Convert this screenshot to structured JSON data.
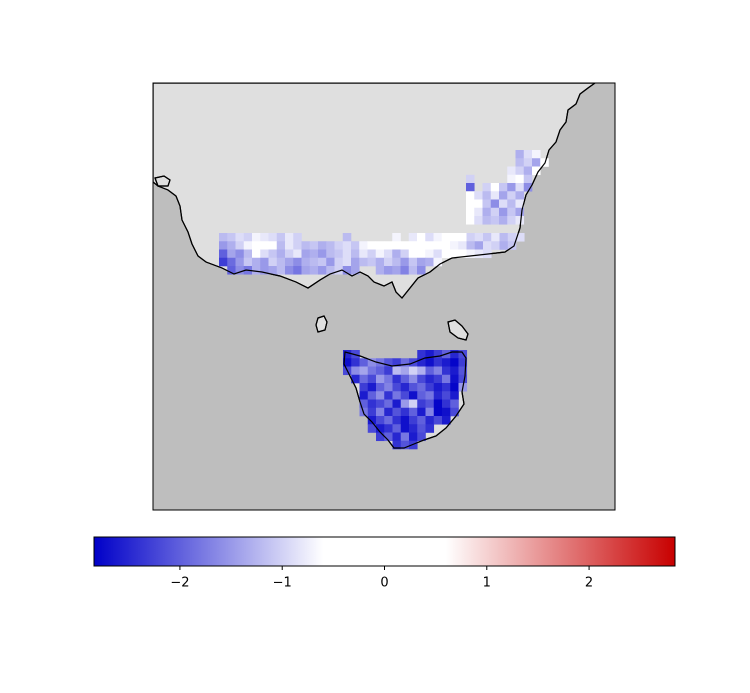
{
  "map_data": {
    "type": "gridded-map",
    "clim": [
      -2.84,
      2.84
    ],
    "cmap_stops": [
      {
        "value": -2.84,
        "color": "#0000c8"
      },
      {
        "value": -0.6,
        "color": "#ffffff"
      },
      {
        "value": 0.6,
        "color": "#ffffff"
      },
      {
        "value": 2.84,
        "color": "#c80000"
      }
    ],
    "ticks": [
      {
        "value": -2,
        "label": "−2"
      },
      {
        "value": -1,
        "label": "−1"
      },
      0,
      1,
      2
    ],
    "land_color": "#dfdfdf",
    "sea_color": "#bebebe",
    "regions": [
      {
        "values": [
          [
            -1.2,
            -1.1,
            -0.9,
            -1.0,
            -0.7,
            -0.8,
            -0.9,
            -1.1,
            -0.8,
            -1.0,
            null,
            null,
            null,
            null,
            null,
            -1.2,
            null,
            null,
            null,
            null,
            null,
            -0.7,
            null,
            -0.8,
            -0.6,
            -0.9,
            -0.7,
            -0.6,
            -0.5,
            -0.6,
            -1.0,
            -0.9,
            -1.1,
            -0.8,
            -1.2,
            -1.0,
            -0.9
          ],
          [
            -1.5,
            -1.3,
            -1.0,
            -0.7,
            -0.5,
            -0.6,
            -0.5,
            -1.2,
            -0.8,
            -1.0,
            -1.2,
            -1.1,
            -1.3,
            -1.2,
            -1.0,
            -0.9,
            -1.1,
            -0.7,
            -0.6,
            -0.5,
            -0.5,
            -0.6,
            -0.5,
            -0.4,
            -0.5,
            -0.6,
            -0.5,
            -0.5,
            -0.7,
            -0.8,
            -1.2,
            -1.4,
            -0.9,
            -1.0,
            -1.3,
            -1.1,
            null
          ],
          [
            -2.0,
            -1.4,
            -1.6,
            -1.2,
            -0.6,
            -0.9,
            -1.1,
            -1.3,
            -1.0,
            -0.8,
            -1.4,
            -1.3,
            -1.5,
            -1.2,
            -1.1,
            -0.9,
            -1.2,
            -0.8,
            -1.0,
            -0.7,
            -0.9,
            -1.3,
            -1.0,
            -0.6,
            -0.5,
            -0.7,
            -0.9,
            -0.6,
            -0.5,
            -0.6,
            -0.7,
            -0.8,
            -0.9,
            null,
            null,
            null,
            null
          ],
          [
            -2.3,
            -1.9,
            -1.5,
            -1.1,
            -1.3,
            -1.5,
            -1.0,
            -1.2,
            -1.4,
            -1.6,
            -1.3,
            -1.2,
            -1.1,
            -1.5,
            -1.0,
            -0.9,
            -1.4,
            -1.2,
            -1.1,
            -1.3,
            -1.0,
            -1.2,
            -1.5,
            -1.1,
            -1.4,
            -1.3,
            -0.7,
            null,
            null,
            null,
            null,
            null,
            null,
            null,
            null,
            null,
            null
          ],
          [
            null,
            -2.0,
            -1.6,
            -1.8,
            -1.3,
            -1.5,
            -1.4,
            -1.2,
            -1.6,
            -1.8,
            -1.4,
            -1.3,
            -1.5,
            -1.2,
            -1.0,
            -1.6,
            -1.4,
            null,
            null,
            -1.3,
            -1.5,
            -1.4,
            -1.7,
            -1.2,
            -1.6,
            null,
            null,
            null,
            null,
            null,
            null,
            null,
            null,
            null,
            null,
            null,
            null
          ]
        ]
      },
      {
        "values": [
          [
            null,
            null,
            null,
            null,
            null,
            null,
            -1.3,
            -0.9,
            -0.7,
            null
          ],
          [
            null,
            null,
            null,
            null,
            null,
            null,
            -1.2,
            -1.0,
            -1.4,
            -0.6
          ],
          [
            null,
            null,
            null,
            null,
            null,
            -0.8,
            -1.0,
            -1.3,
            -0.5,
            null
          ],
          [
            -1.0,
            null,
            null,
            null,
            null,
            -0.7,
            -0.5,
            -1.1,
            null,
            null
          ],
          [
            -2.0,
            null,
            -1.0,
            -0.6,
            -1.1,
            -1.5,
            -0.9,
            -1.6,
            null,
            null
          ],
          [
            -0.5,
            -0.9,
            -1.2,
            -0.8,
            -1.4,
            -1.0,
            -1.3,
            null,
            null,
            null
          ],
          [
            0.6,
            -0.5,
            -1.1,
            -1.6,
            -0.9,
            -1.2,
            -0.8,
            null,
            null,
            null
          ],
          [
            -0.5,
            -0.8,
            -1.3,
            -1.0,
            -1.5,
            -1.1,
            -1.4,
            null,
            null,
            null
          ],
          [
            -0.6,
            -0.9,
            -1.2,
            -1.1,
            -1.3,
            -1.0,
            -0.8,
            null,
            null,
            null
          ]
        ]
      },
      {
        "values": [
          [
            -2.5,
            -2.2,
            null,
            null,
            null,
            null,
            null,
            null,
            null,
            -2.4,
            -2.6,
            -2.3,
            -2.0,
            -2.5,
            -2.2
          ],
          [
            -2.7,
            -2.4,
            -2.0,
            -1.6,
            -1.8,
            -2.1,
            -2.3,
            -1.9,
            -2.2,
            -2.5,
            -2.7,
            -2.4,
            -2.6,
            -2.8,
            -2.3
          ],
          [
            -2.2,
            -1.6,
            -1.4,
            -1.8,
            -2.0,
            -2.3,
            -1.2,
            -1.4,
            -1.0,
            -1.3,
            -2.0,
            -1.7,
            -2.4,
            -2.6,
            -2.1
          ],
          [
            null,
            -2.5,
            -1.9,
            -2.2,
            -1.5,
            -1.8,
            -2.4,
            -2.0,
            -1.6,
            -2.2,
            -2.5,
            -2.3,
            -1.8,
            -2.7,
            -2.2
          ],
          [
            null,
            null,
            -2.3,
            -2.6,
            -2.0,
            -1.7,
            -2.2,
            -2.5,
            -2.1,
            -1.9,
            -2.3,
            -2.6,
            -2.4,
            -2.8,
            -1.5
          ],
          [
            null,
            null,
            -2.6,
            -2.0,
            -1.6,
            -2.4,
            -1.8,
            -2.2,
            -2.7,
            -2.0,
            -1.8,
            -2.5,
            -2.2,
            -2.6,
            null
          ],
          [
            null,
            null,
            -2.0,
            -2.4,
            -2.2,
            -1.9,
            -2.6,
            -1.5,
            -1.0,
            -2.3,
            -2.1,
            -2.8,
            -2.4,
            -2.0,
            null
          ],
          [
            null,
            null,
            -1.8,
            -2.3,
            -1.7,
            -2.5,
            -2.1,
            -2.4,
            -2.0,
            -2.6,
            -1.7,
            -2.8,
            -2.7,
            -2.2,
            null
          ],
          [
            null,
            null,
            null,
            -2.6,
            -2.2,
            -1.9,
            -2.4,
            -2.7,
            -2.3,
            -2.0,
            -2.5,
            -2.2,
            -2.6,
            null,
            null
          ],
          [
            null,
            null,
            null,
            -2.2,
            -2.6,
            -2.4,
            -2.0,
            -2.7,
            -2.5,
            -2.1,
            -2.4,
            null,
            null,
            null,
            null
          ],
          [
            null,
            null,
            null,
            null,
            -2.3,
            -2.0,
            -2.5,
            -1.8,
            -2.6,
            -2.2,
            null,
            null,
            null,
            null,
            null
          ],
          [
            null,
            null,
            null,
            null,
            null,
            null,
            -2.4,
            -2.1,
            -2.3,
            null,
            null,
            null,
            null,
            null,
            null
          ]
        ]
      }
    ]
  }
}
